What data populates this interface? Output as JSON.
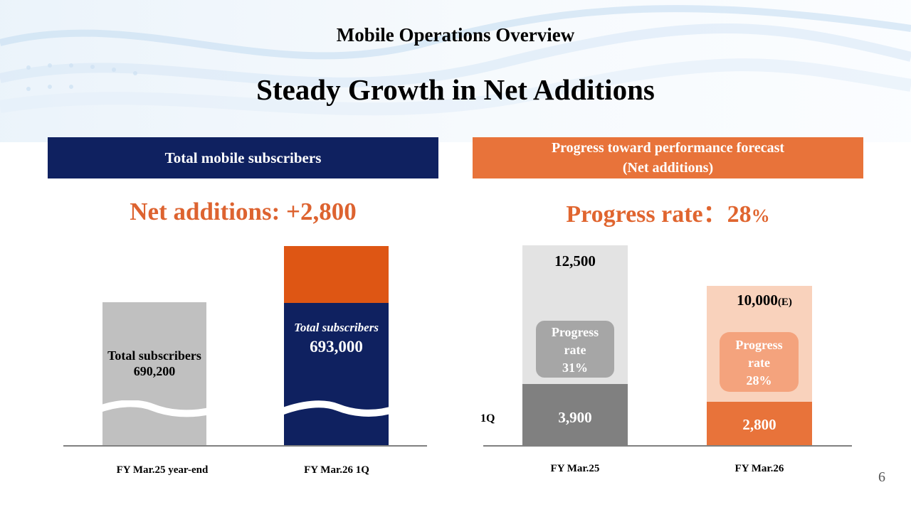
{
  "section_title": "Mobile Operations Overview",
  "main_title": "Steady Growth in Net Additions",
  "left_panel": {
    "header": "Total mobile subscribers",
    "net_additions_label": "Net additions: +2,800",
    "bars": [
      {
        "label_line1": "Total subscribers",
        "value": "690,200",
        "axis_label": "FY Mar.25 year-end"
      },
      {
        "label_line1": "Total subscribers",
        "value": "693,000",
        "axis_label": "FY Mar.26 1Q"
      }
    ]
  },
  "right_panel": {
    "header_line1": "Progress toward performance forecast",
    "header_line2": "(Net additions)",
    "progress_label": "Progress rate",
    "progress_sep": "：",
    "progress_value": "28",
    "progress_pct": "%",
    "quarter_label": "1Q",
    "bars": [
      {
        "total": "12,500",
        "total_suffix": "",
        "actual": "3,900",
        "badge_line1": "Progress",
        "badge_line2": "rate",
        "badge_line3": "31%",
        "axis_label": "FY Mar.25"
      },
      {
        "total": "10,000",
        "total_suffix": "(E)",
        "actual": "2,800",
        "badge_line1": "Progress",
        "badge_line2": "rate",
        "badge_line3": "28%",
        "axis_label": "FY Mar.26"
      }
    ]
  },
  "page_number": "6",
  "colors": {
    "navy": "#0f2160",
    "orange": "#e8733a",
    "dark_orange": "#de5614",
    "gray_bar": "#c0c0c0",
    "dark_gray": "#808080",
    "light_gray": "#e3e3e3",
    "light_orange": "#f9d2bc"
  }
}
